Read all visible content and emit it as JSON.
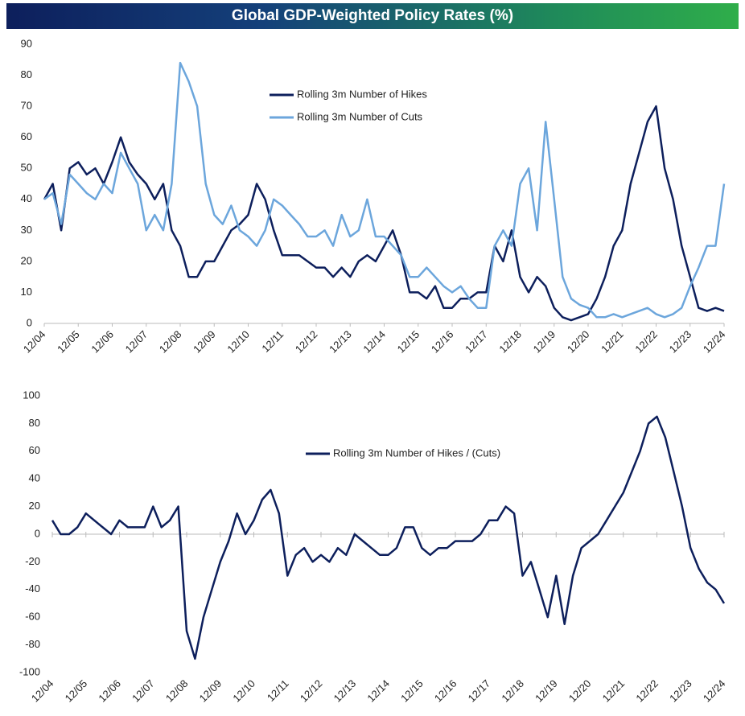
{
  "title": "Global GDP-Weighted Policy Rates (%)",
  "chart_data": [
    {
      "type": "line",
      "categories": [
        "12/04",
        null,
        null,
        null,
        "12/05",
        null,
        null,
        null,
        "12/06",
        null,
        null,
        null,
        "12/07",
        null,
        null,
        null,
        "12/08",
        null,
        null,
        null,
        "12/09",
        null,
        null,
        null,
        "12/10",
        null,
        null,
        null,
        "12/11",
        null,
        null,
        null,
        "12/12",
        null,
        null,
        null,
        "12/13",
        null,
        null,
        null,
        "12/14",
        null,
        null,
        null,
        "12/15",
        null,
        null,
        null,
        "12/16",
        null,
        null,
        null,
        "12/17",
        null,
        null,
        null,
        "12/18",
        null,
        null,
        null,
        "12/19",
        null,
        null,
        null,
        "12/20",
        null,
        null,
        null,
        "12/21",
        null,
        null,
        null,
        "12/22",
        null,
        null,
        null,
        "12/23",
        null,
        null,
        null,
        "12/24"
      ],
      "ylim": [
        0,
        90
      ],
      "yticks": [
        0,
        10,
        20,
        30,
        40,
        50,
        60,
        70,
        80,
        90
      ],
      "series": [
        {
          "name": "Rolling 3m Number of Hikes",
          "color": "#0d1f5c",
          "values": [
            40,
            45,
            30,
            50,
            52,
            48,
            50,
            45,
            52,
            60,
            52,
            48,
            45,
            40,
            45,
            30,
            25,
            15,
            15,
            20,
            20,
            25,
            30,
            32,
            35,
            45,
            40,
            30,
            22,
            22,
            22,
            20,
            18,
            18,
            15,
            18,
            15,
            20,
            22,
            20,
            25,
            30,
            22,
            10,
            10,
            8,
            12,
            5,
            5,
            8,
            8,
            10,
            10,
            25,
            20,
            30,
            15,
            10,
            15,
            12,
            5,
            2,
            1,
            2,
            3,
            8,
            15,
            25,
            30,
            45,
            55,
            65,
            70,
            50,
            40,
            25,
            15,
            5,
            4,
            5,
            4
          ]
        },
        {
          "name": "Rolling 3m Number of Cuts",
          "color": "#6ca6dc",
          "values": [
            40,
            42,
            32,
            48,
            45,
            42,
            40,
            45,
            42,
            55,
            50,
            45,
            30,
            35,
            30,
            45,
            84,
            78,
            70,
            45,
            35,
            32,
            38,
            30,
            28,
            25,
            30,
            40,
            38,
            35,
            32,
            28,
            28,
            30,
            25,
            35,
            28,
            30,
            40,
            28,
            28,
            25,
            22,
            15,
            15,
            18,
            15,
            12,
            10,
            12,
            8,
            5,
            5,
            25,
            30,
            25,
            45,
            50,
            30,
            65,
            40,
            15,
            8,
            6,
            5,
            2,
            2,
            3,
            2,
            3,
            4,
            5,
            3,
            2,
            3,
            5,
            12,
            18,
            25,
            25,
            45
          ]
        }
      ]
    },
    {
      "type": "line",
      "categories": [
        "12/04",
        null,
        null,
        null,
        "12/05",
        null,
        null,
        null,
        "12/06",
        null,
        null,
        null,
        "12/07",
        null,
        null,
        null,
        "12/08",
        null,
        null,
        null,
        "12/09",
        null,
        null,
        null,
        "12/10",
        null,
        null,
        null,
        "12/11",
        null,
        null,
        null,
        "12/12",
        null,
        null,
        null,
        "12/13",
        null,
        null,
        null,
        "12/14",
        null,
        null,
        null,
        "12/15",
        null,
        null,
        null,
        "12/16",
        null,
        null,
        null,
        "12/17",
        null,
        null,
        null,
        "12/18",
        null,
        null,
        null,
        "12/19",
        null,
        null,
        null,
        "12/20",
        null,
        null,
        null,
        "12/21",
        null,
        null,
        null,
        "12/22",
        null,
        null,
        null,
        "12/23",
        null,
        null,
        null,
        "12/24"
      ],
      "ylim": [
        -100,
        100
      ],
      "yticks": [
        -100,
        -80,
        -60,
        -40,
        -20,
        0,
        20,
        40,
        60,
        80,
        100
      ],
      "series": [
        {
          "name": "Rolling 3m Number of Hikes / (Cuts)",
          "color": "#0d1f5c",
          "values": [
            10,
            0,
            0,
            5,
            15,
            10,
            5,
            0,
            10,
            5,
            5,
            5,
            20,
            5,
            10,
            20,
            -70,
            -90,
            -60,
            -40,
            -20,
            -5,
            15,
            0,
            10,
            25,
            32,
            15,
            -30,
            -15,
            -10,
            -20,
            -15,
            -20,
            -10,
            -15,
            0,
            -5,
            -10,
            -15,
            -15,
            -10,
            5,
            5,
            -10,
            -15,
            -10,
            -10,
            -5,
            -5,
            -5,
            0,
            10,
            10,
            20,
            15,
            -30,
            -20,
            -40,
            -60,
            -30,
            -65,
            -30,
            -10,
            -5,
            0,
            10,
            20,
            30,
            45,
            60,
            80,
            85,
            70,
            45,
            20,
            -10,
            -25,
            -35,
            -40,
            -50
          ]
        }
      ]
    }
  ]
}
